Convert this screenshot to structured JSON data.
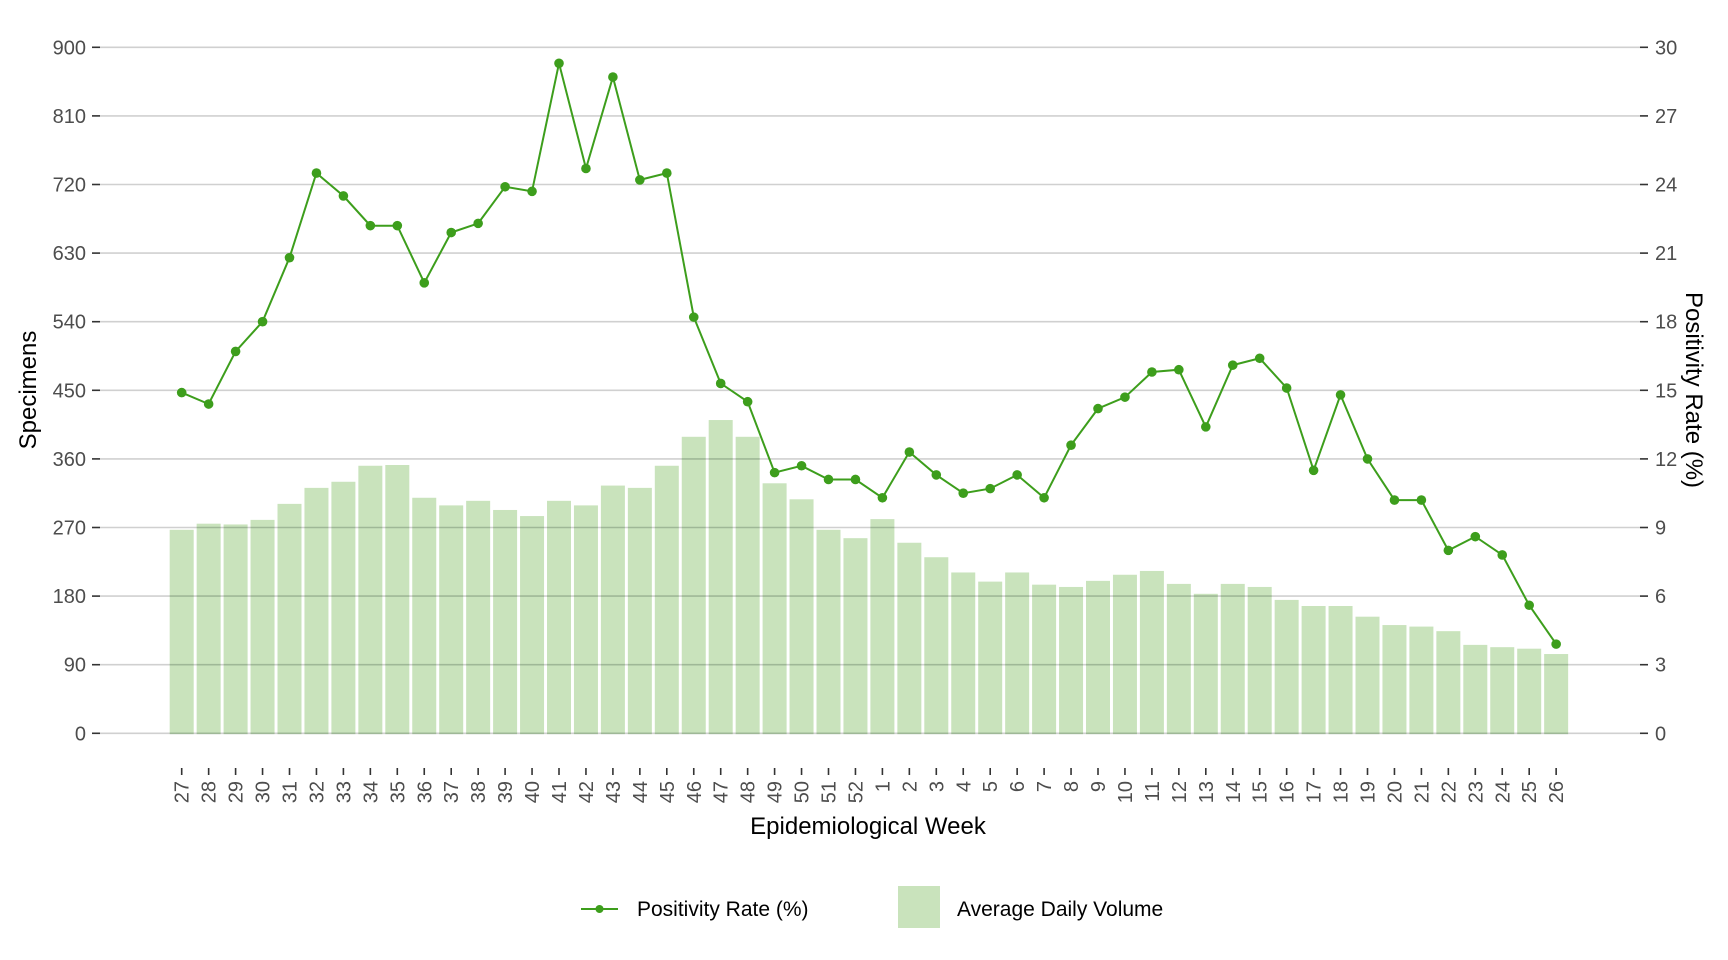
{
  "chart_data": {
    "type": "bar+line",
    "title": "",
    "xlabel": "Epidemiological Week",
    "ylabel_left": "Specimens",
    "ylabel_right": "Positivity Rate (%)",
    "ylim_left": [
      0,
      900
    ],
    "ylim_right": [
      0,
      30
    ],
    "yticks_left": [
      "0",
      "90",
      "180",
      "270",
      "360",
      "450",
      "540",
      "630",
      "720",
      "810",
      "900"
    ],
    "yticks_right": [
      "0",
      "3",
      "6",
      "9",
      "12",
      "15",
      "18",
      "21",
      "24",
      "27",
      "30"
    ],
    "grid": true,
    "legend_position": "bottom",
    "categories": [
      "27",
      "28",
      "29",
      "30",
      "31",
      "32",
      "33",
      "34",
      "35",
      "36",
      "37",
      "38",
      "39",
      "40",
      "41",
      "42",
      "43",
      "44",
      "45",
      "46",
      "47",
      "48",
      "49",
      "50",
      "51",
      "52",
      "1",
      "2",
      "3",
      "4",
      "5",
      "6",
      "7",
      "8",
      "9",
      "10",
      "11",
      "12",
      "13",
      "14",
      "15",
      "16",
      "17",
      "18",
      "19",
      "20",
      "21",
      "22",
      "23",
      "24",
      "25",
      "26"
    ],
    "series": [
      {
        "name": "Average Daily Volume",
        "type": "bar",
        "axis": "left",
        "color": "#c9e3bc",
        "values": [
          267,
          275,
          274,
          280,
          301,
          322,
          330,
          351,
          352,
          309,
          299,
          305,
          293,
          285,
          305,
          299,
          325,
          322,
          351,
          389,
          411,
          389,
          328,
          307,
          267,
          256,
          281,
          250,
          231,
          211,
          199,
          211,
          195,
          192,
          200,
          208,
          213,
          196,
          183,
          196,
          192,
          175,
          167,
          167,
          153,
          142,
          140,
          134,
          116,
          113,
          111,
          104
        ]
      },
      {
        "name": "Positivity Rate (%)",
        "type": "line",
        "axis": "right",
        "color": "#3d9e1c",
        "values": [
          14.9,
          14.4,
          16.7,
          18.0,
          20.8,
          24.5,
          23.5,
          22.2,
          22.2,
          19.7,
          21.9,
          22.3,
          23.9,
          23.7,
          29.3,
          24.7,
          28.7,
          24.2,
          24.5,
          18.2,
          15.3,
          14.5,
          11.4,
          11.7,
          11.1,
          11.1,
          10.3,
          12.3,
          11.3,
          10.5,
          10.7,
          11.3,
          10.3,
          12.6,
          14.2,
          14.7,
          15.8,
          15.9,
          13.4,
          16.1,
          16.4,
          15.1,
          11.5,
          14.8,
          12.0,
          10.2,
          10.2,
          8.0,
          8.6,
          7.8,
          5.6,
          3.9
        ]
      }
    ],
    "legend": [
      {
        "label": "Positivity Rate (%)",
        "symbol": "line-point"
      },
      {
        "label": "Average Daily Volume",
        "symbol": "square"
      }
    ]
  }
}
